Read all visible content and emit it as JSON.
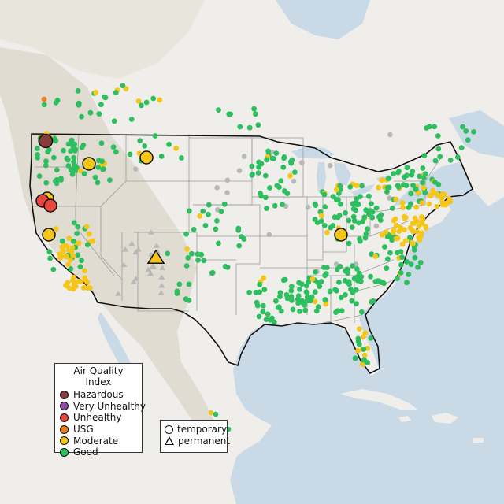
{
  "map": {
    "colors": {
      "water": "#c9d9e6",
      "land": "#efeeea",
      "terrain": "#dbd7cd",
      "us_state_line": "#9a9a9a",
      "us_border": "#111111"
    }
  },
  "legend_aqi": {
    "title": "Air Quality Index",
    "items": [
      {
        "label": "Hazardous",
        "color": "#8b3a3a"
      },
      {
        "label": "Very Unhealthy",
        "color": "#8e4ba8"
      },
      {
        "label": "Unhealthy",
        "color": "#e8463c"
      },
      {
        "label": "USG",
        "color": "#e87c1e"
      },
      {
        "label": "Moderate",
        "color": "#f5c518"
      },
      {
        "label": "Good",
        "color": "#2dbf5f"
      }
    ]
  },
  "legend_type": {
    "items": [
      {
        "label": "temporary",
        "shape": "circle"
      },
      {
        "label": "permanent",
        "shape": "triangle"
      }
    ]
  },
  "monitor_colors": {
    "Good": "#2dbf5f",
    "Moderate": "#f5c518",
    "USG": "#e87c1e",
    "Unhealthy": "#e8463c",
    "Hazardous": "#8b3a3a",
    "Unknown": "#b8b8b8"
  }
}
